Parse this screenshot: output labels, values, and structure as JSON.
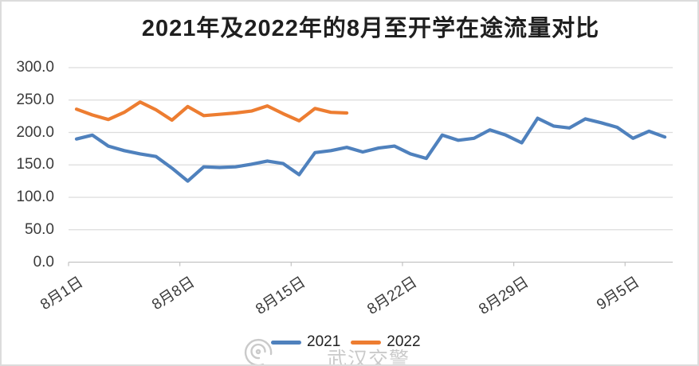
{
  "watermark": {
    "text": "武汉交警",
    "logo": "swirl-logo"
  },
  "legend": {
    "items": [
      {
        "label": "2021",
        "color": "#4f81bd"
      },
      {
        "label": "2022",
        "color": "#ed7d31"
      }
    ]
  },
  "chart_data": {
    "type": "line",
    "title": "2021年及2022年的8月至开学在途流量对比",
    "xlabel": "",
    "ylabel": "",
    "ylim": [
      0,
      300
    ],
    "y_step": 50,
    "y_tick_labels": [
      "300.0",
      "250.0",
      "200.0",
      "150.0",
      "100.0",
      "50.0",
      "0.0"
    ],
    "x_tick_labels": [
      "8月1日",
      "8月8日",
      "8月15日",
      "8月22日",
      "8月29日",
      "9月5日"
    ],
    "x_tick_day_indices": [
      0,
      7,
      14,
      21,
      28,
      35
    ],
    "grid": "horizontal",
    "legend_position": "bottom",
    "categories": [
      "8月1日",
      "8月2日",
      "8月3日",
      "8月4日",
      "8月5日",
      "8月6日",
      "8月7日",
      "8月8日",
      "8月9日",
      "8月10日",
      "8月11日",
      "8月12日",
      "8月13日",
      "8月14日",
      "8月15日",
      "8月16日",
      "8月17日",
      "8月18日",
      "8月19日",
      "8月20日",
      "8月21日",
      "8月22日",
      "8月23日",
      "8月24日",
      "8月25日",
      "8月26日",
      "8月27日",
      "8月28日",
      "8月29日",
      "8月30日",
      "8月31日",
      "9月1日",
      "9月2日",
      "9月3日",
      "9月4日",
      "9月5日",
      "9月6日",
      "9月7日"
    ],
    "series": [
      {
        "name": "2021",
        "color": "#4f81bd",
        "values": [
          190,
          196,
          179,
          172,
          167,
          163,
          145,
          125,
          147,
          146,
          147,
          151,
          156,
          152,
          135,
          169,
          172,
          177,
          170,
          176,
          179,
          167,
          160,
          196,
          188,
          191,
          204,
          196,
          184,
          222,
          210,
          207,
          221,
          215,
          208,
          191,
          202,
          193
        ]
      },
      {
        "name": "2022",
        "color": "#ed7d31",
        "values": [
          236,
          227,
          220,
          231,
          247,
          235,
          219,
          240,
          226,
          228,
          230,
          233,
          241,
          229,
          218,
          237,
          231,
          230
        ]
      }
    ]
  }
}
